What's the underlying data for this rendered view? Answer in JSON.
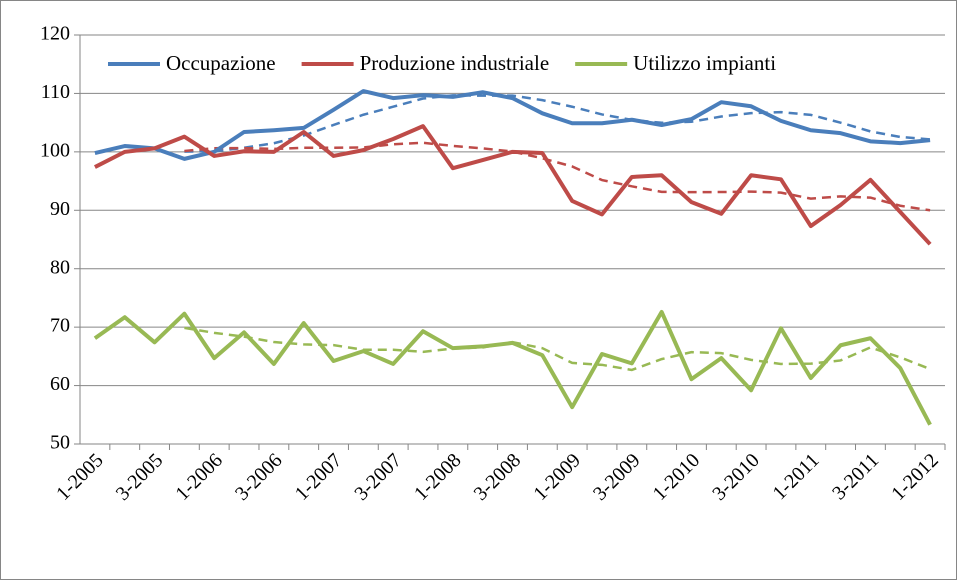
{
  "chart_data": {
    "type": "line",
    "categories": [
      "1-2005",
      null,
      "3-2005",
      null,
      "1-2006",
      null,
      "3-2006",
      null,
      "1-2007",
      null,
      "3-2007",
      null,
      "1-2008",
      null,
      "3-2008",
      null,
      "1-2009",
      null,
      "3-2009",
      null,
      "1-2010",
      null,
      "3-2010",
      null,
      "1-2011",
      null,
      "3-2011",
      null,
      "1-2012"
    ],
    "series": [
      {
        "name": "Occupazione",
        "color": "#4a7ebb",
        "values": [
          99.8,
          101,
          100.6,
          98.8,
          100,
          103.4,
          103.7,
          104.1,
          107.2,
          110.4,
          109.2,
          109.7,
          109.4,
          110.2,
          109.2,
          106.6,
          104.9,
          104.9,
          105.5,
          104.6,
          105.6,
          108.5,
          107.8,
          105.3,
          103.7,
          103.2,
          101.8,
          101.5,
          102
        ]
      },
      {
        "name": "Produzione industriale",
        "color": "#be4b48",
        "values": [
          97.4,
          100,
          100.6,
          102.6,
          99.3,
          100.1,
          100,
          103.4,
          99.3,
          100.3,
          102.2,
          104.4,
          97.2,
          98.6,
          100,
          99.8,
          91.6,
          89.3,
          95.7,
          96,
          91.4,
          89.4,
          96,
          95.3,
          87.3,
          90.9,
          95.2,
          89.7,
          84.2
        ]
      },
      {
        "name": "Utilizzo impianti",
        "color": "#98b954",
        "values": [
          68.1,
          71.7,
          67.4,
          72.3,
          64.7,
          69.1,
          63.7,
          70.7,
          64.2,
          65.9,
          63.7,
          69.3,
          66.4,
          66.7,
          67.3,
          65.2,
          56.3,
          65.4,
          63.8,
          72.6,
          61.1,
          64.7,
          59.2,
          69.8,
          61.3,
          66.9,
          68.1,
          63,
          53.3
        ]
      }
    ],
    "trendline": {
      "type": "moving_average",
      "period": 4
    },
    "ylim": [
      50,
      120
    ],
    "yticks": [
      50,
      60,
      70,
      80,
      90,
      100,
      110,
      120
    ],
    "grid": true,
    "legend": "top"
  }
}
